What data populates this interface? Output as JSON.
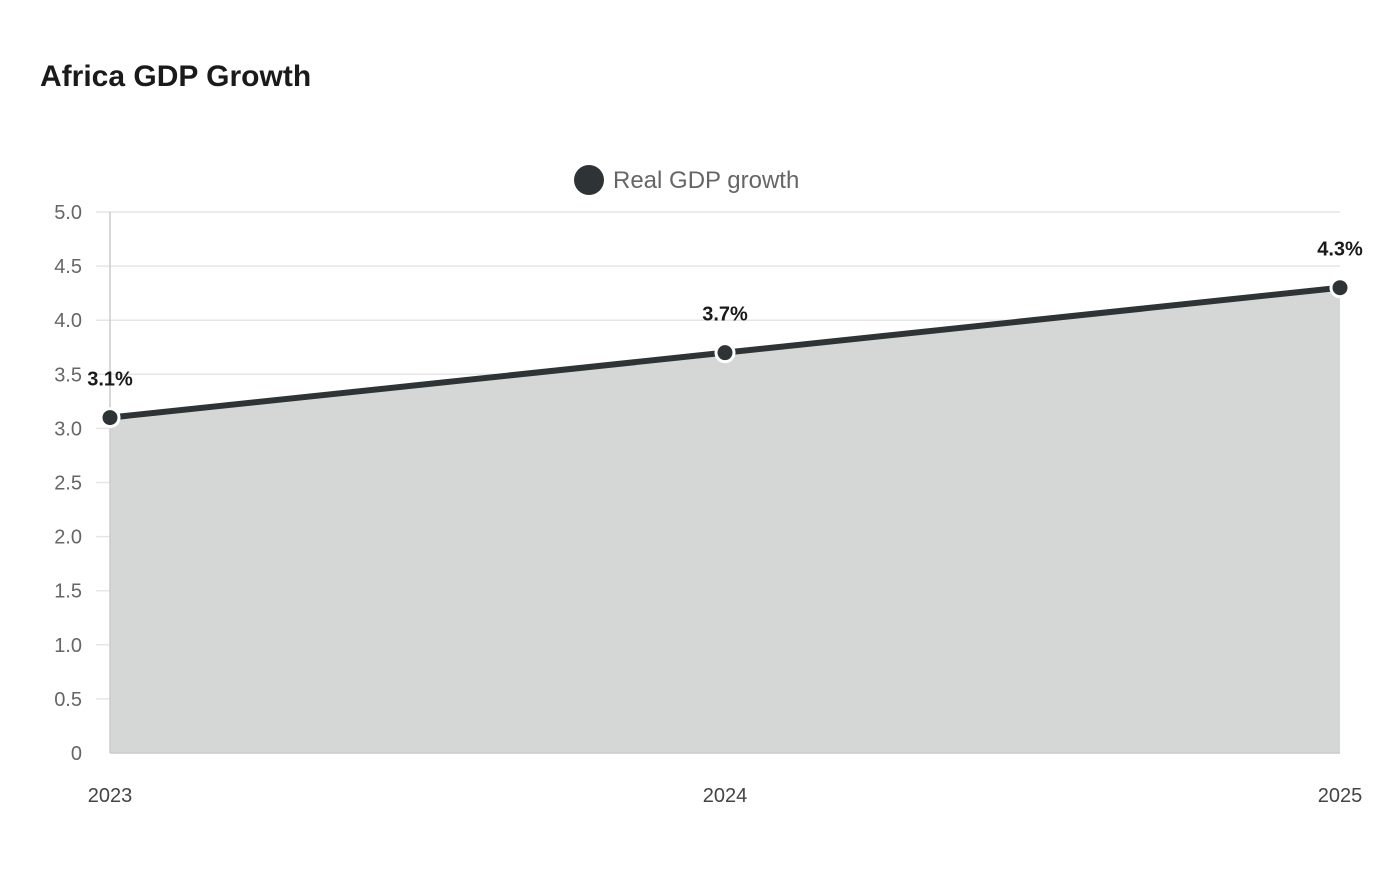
{
  "chart_data": {
    "type": "area",
    "title": "Africa GDP Growth",
    "xlabel": "",
    "ylabel": "",
    "categories": [
      "2023",
      "2024",
      "2025"
    ],
    "series": [
      {
        "name": "Real GDP growth",
        "values": [
          3.1,
          3.7,
          4.3
        ],
        "data_labels": [
          "3.1%",
          "3.7%",
          "4.3%"
        ]
      }
    ],
    "ylim": [
      0,
      5
    ],
    "yticks": [
      0,
      0.5,
      1,
      1.5,
      2,
      2.5,
      3,
      3.5,
      4,
      4.5,
      5
    ],
    "ytick_labels": [
      "0",
      "0.5",
      "1.0",
      "1.5",
      "2.0",
      "2.5",
      "3.0",
      "3.5",
      "4.0",
      "4.5",
      "5.0"
    ],
    "grid": true,
    "legend_position": "top-center"
  },
  "colors": {
    "line": "#2e3436",
    "fill": "#d5d7d6",
    "grid": "#e6e6e6",
    "axis": "#cccccc"
  }
}
